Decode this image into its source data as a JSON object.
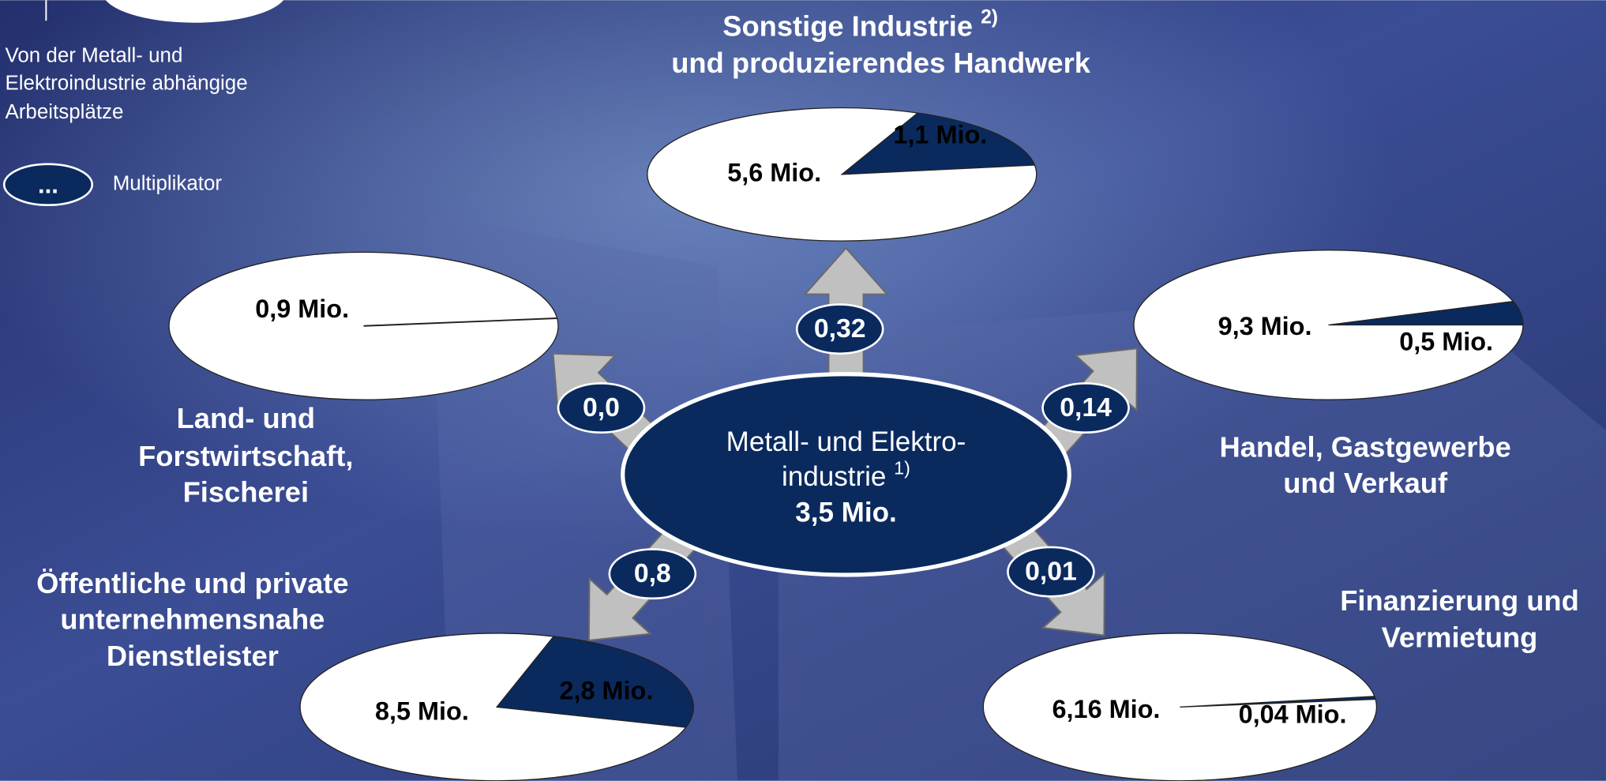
{
  "legend": {
    "lines": [
      "Von der Metall- und",
      "Elektroindustrie abhängige",
      "Arbeitsplätze"
    ],
    "multiplier_symbol": "...",
    "multiplier_label": "Multiplikator"
  },
  "center": {
    "lines": [
      "Metall- und Elektro-",
      "industrie"
    ],
    "note": "1)",
    "total": {
      "value": 3.5,
      "label": "3,5 Mio."
    }
  },
  "sectors": [
    {
      "title": [
        "Sonstige Industrie",
        "und produzierendes Handwerk"
      ],
      "note": "2)",
      "multiplier": {
        "value": 0.32,
        "label": "0,32"
      },
      "remaining": {
        "value": 5.6,
        "label": "5,6 Mio."
      },
      "dependent": {
        "value": 1.1,
        "label": "1,1 Mio."
      }
    },
    {
      "title": [
        "Land- und",
        "Forstwirtschaft,",
        "Fischerei"
      ],
      "multiplier": {
        "value": 0.0,
        "label": "0,0"
      },
      "remaining": {
        "value": 0.9,
        "label": "0,9 Mio."
      }
    },
    {
      "title": [
        "Handel, Gastgewerbe",
        "und Verkauf"
      ],
      "multiplier": {
        "value": 0.14,
        "label": "0,14"
      },
      "remaining": {
        "value": 9.3,
        "label": "9,3 Mio."
      },
      "dependent": {
        "value": 0.5,
        "label": "0,5 Mio."
      }
    },
    {
      "title": [
        "Öffentliche und private",
        "unternehmensnahe",
        "Dienstleister"
      ],
      "multiplier": {
        "value": 0.8,
        "label": "0,8"
      },
      "remaining": {
        "value": 8.5,
        "label": "8,5 Mio."
      },
      "dependent": {
        "value": 2.8,
        "label": "2,8 Mio."
      }
    },
    {
      "title": [
        "Finanzierung und",
        "Vermietung"
      ],
      "multiplier": {
        "value": 0.01,
        "label": "0,01"
      },
      "remaining": {
        "value": 6.16,
        "label": "6,16 Mio."
      },
      "dependent": {
        "value": 0.04,
        "label": "0,04 Mio."
      }
    }
  ]
}
